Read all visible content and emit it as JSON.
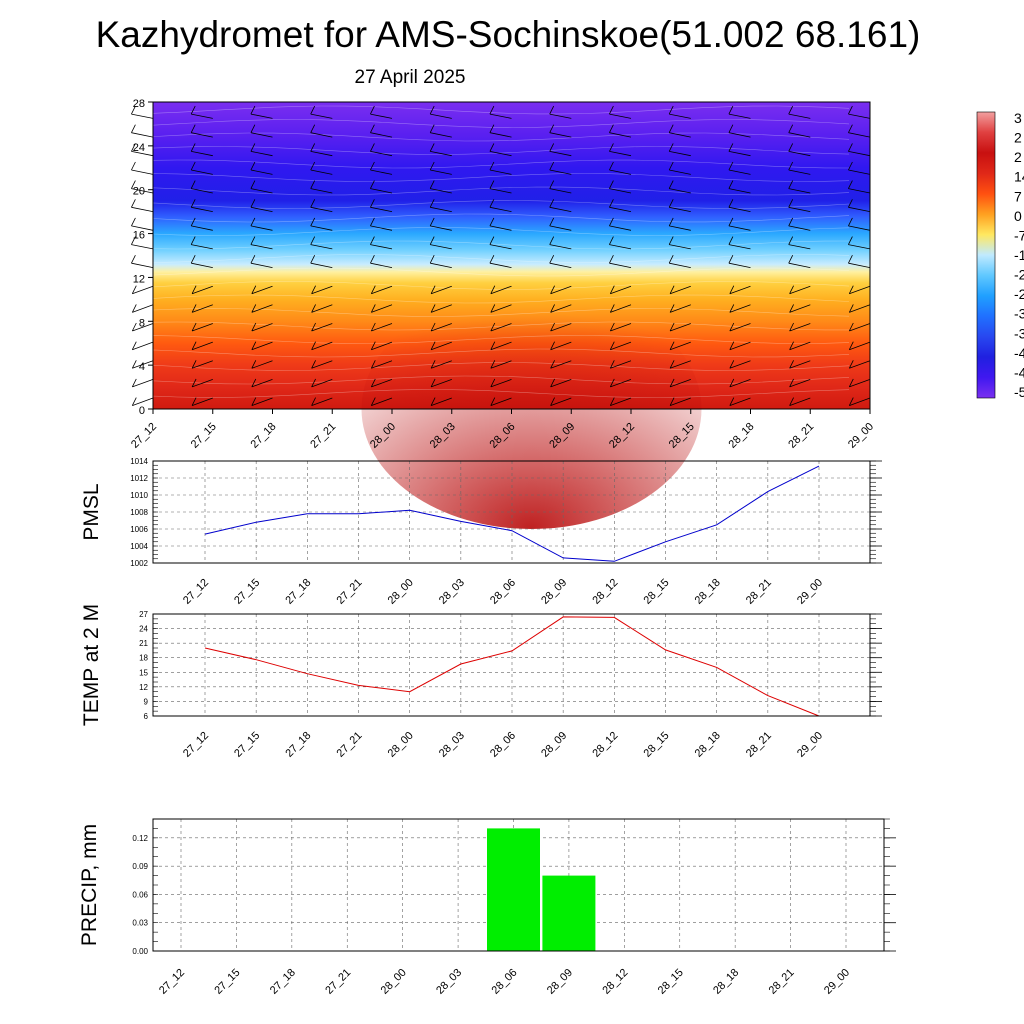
{
  "title": "Kazhydromet for AMS-Sochinskoe(51.002 68.161)",
  "subtitle": "27 April 2025",
  "colors": {
    "pmsl_line": "#0000cc",
    "temp_line": "#dd0000",
    "precip_bar": "#00ee00"
  },
  "chart_data": [
    {
      "type": "heatmap",
      "name": "vertical-cross-section",
      "x_categories": [
        "27_12",
        "27_15",
        "27_18",
        "27_21",
        "28_00",
        "28_03",
        "28_06",
        "28_09",
        "28_12",
        "28_15",
        "28_18",
        "28_21",
        "29_00"
      ],
      "ylim": [
        0,
        28
      ],
      "yticks": [
        0,
        4,
        8,
        12,
        16,
        20,
        24,
        28
      ],
      "levels": [
        {
          "y": 0,
          "color": "#d01a10"
        },
        {
          "y": 2,
          "color": "#e02818"
        },
        {
          "y": 4,
          "color": "#ef3a18"
        },
        {
          "y": 6,
          "color": "#ff5a10"
        },
        {
          "y": 8,
          "color": "#ff8a18"
        },
        {
          "y": 10,
          "color": "#ffb020"
        },
        {
          "y": 11.5,
          "color": "#ffd040"
        },
        {
          "y": 12.5,
          "color": "#fff0a0"
        },
        {
          "y": 13.2,
          "color": "#c8ecff"
        },
        {
          "y": 14.5,
          "color": "#70d0ff"
        },
        {
          "y": 16,
          "color": "#2aa8ff"
        },
        {
          "y": 17.5,
          "color": "#3060ff"
        },
        {
          "y": 19,
          "color": "#2020e8"
        },
        {
          "y": 22,
          "color": "#3018f0"
        },
        {
          "y": 25,
          "color": "#5a20f0"
        },
        {
          "y": 28,
          "color": "#7a2ef0"
        }
      ],
      "colorbar_labels": [
        "3",
        "2",
        "2",
        "14",
        "7",
        "0",
        "-7",
        "-1",
        "-2",
        "-2",
        "-3",
        "-3",
        "-4",
        "-4",
        "-5"
      ],
      "colorbar_colors": [
        "#f2a0a0",
        "#e04040",
        "#c81010",
        "#e02818",
        "#ff5010",
        "#ffa020",
        "#ffe860",
        "#c0eaff",
        "#60c8ff",
        "#20a0ff",
        "#2070ff",
        "#2848f0",
        "#2020e0",
        "#4018f0",
        "#7a30f0"
      ]
    },
    {
      "type": "line",
      "name": "pmsl",
      "ylabel": "PMSL",
      "categories": [
        "27_12",
        "27_15",
        "27_18",
        "27_21",
        "28_00",
        "28_03",
        "28_06",
        "28_09",
        "28_12",
        "28_15",
        "28_18",
        "28_21",
        "29_00"
      ],
      "values": [
        1005.4,
        1006.8,
        1007.8,
        1007.8,
        1008.2,
        1006.9,
        1005.8,
        1002.6,
        1002.2,
        1004.5,
        1006.5,
        1010.4,
        1013.4
      ],
      "ylim": [
        1002,
        1014
      ],
      "yticks": [
        1002,
        1004,
        1006,
        1008,
        1010,
        1012,
        1014
      ],
      "grid": true
    },
    {
      "type": "line",
      "name": "temp",
      "ylabel": "TEMP at 2 M",
      "categories": [
        "27_12",
        "27_15",
        "27_18",
        "27_21",
        "28_00",
        "28_03",
        "28_06",
        "28_09",
        "28_12",
        "28_15",
        "28_18",
        "28_21",
        "29_00"
      ],
      "values": [
        20.0,
        17.6,
        14.7,
        12.3,
        11.0,
        16.7,
        19.4,
        26.4,
        26.3,
        19.6,
        16.0,
        10.2,
        6.0
      ],
      "ylim": [
        6,
        27
      ],
      "yticks": [
        6,
        9,
        12,
        15,
        18,
        21,
        24,
        27
      ],
      "grid": true
    },
    {
      "type": "bar",
      "name": "precip",
      "ylabel": "PRECIP, mm",
      "categories": [
        "27_12",
        "27_15",
        "27_18",
        "27_21",
        "28_00",
        "28_03",
        "28_06",
        "28_09",
        "28_12",
        "28_15",
        "28_18",
        "28_21",
        "29_00"
      ],
      "values": [
        0,
        0,
        0,
        0,
        0,
        0,
        0.13,
        0.08,
        0,
        0,
        0,
        0,
        0
      ],
      "ylim": [
        0,
        0.14
      ],
      "yticks": [
        "0.00",
        "0.03",
        "0.06",
        "0.09",
        "0.12"
      ],
      "grid": true
    }
  ]
}
